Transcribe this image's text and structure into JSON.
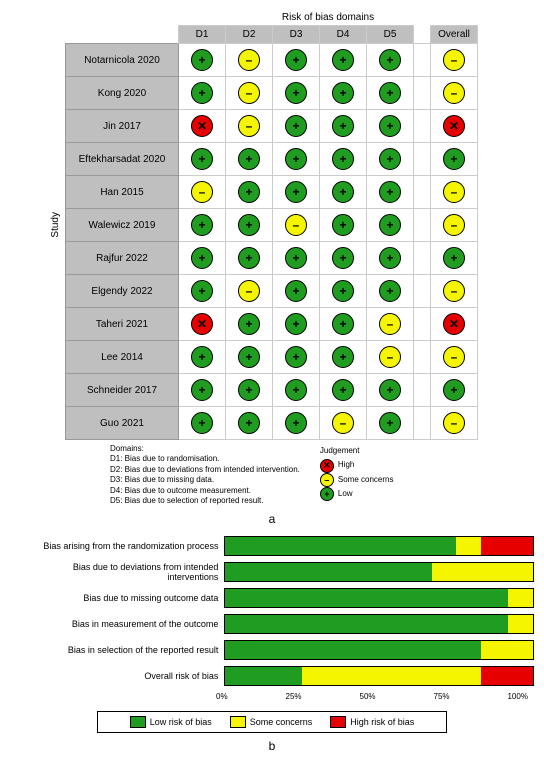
{
  "panelA": {
    "title": "Risk of bias domains",
    "ylabel": "Study",
    "columns": [
      "D1",
      "D2",
      "D3",
      "D4",
      "D5",
      "Overall"
    ],
    "studies": [
      {
        "name": "Notarnicola 2020",
        "cells": [
          "low",
          "some",
          "low",
          "low",
          "low",
          "some"
        ]
      },
      {
        "name": "Kong 2020",
        "cells": [
          "low",
          "some",
          "low",
          "low",
          "low",
          "some"
        ]
      },
      {
        "name": "Jin 2017",
        "cells": [
          "high",
          "some",
          "low",
          "low",
          "low",
          "high"
        ]
      },
      {
        "name": "Eftekharsadat 2020",
        "cells": [
          "low",
          "low",
          "low",
          "low",
          "low",
          "low"
        ]
      },
      {
        "name": "Han 2015",
        "cells": [
          "some",
          "low",
          "low",
          "low",
          "low",
          "some"
        ]
      },
      {
        "name": "Walewicz 2019",
        "cells": [
          "low",
          "low",
          "some",
          "low",
          "low",
          "some"
        ]
      },
      {
        "name": "Rajfur 2022",
        "cells": [
          "low",
          "low",
          "low",
          "low",
          "low",
          "low"
        ]
      },
      {
        "name": "Elgendy 2022",
        "cells": [
          "low",
          "some",
          "low",
          "low",
          "low",
          "some"
        ]
      },
      {
        "name": "Taheri 2021",
        "cells": [
          "high",
          "low",
          "low",
          "low",
          "some",
          "high"
        ]
      },
      {
        "name": "Lee 2014",
        "cells": [
          "low",
          "low",
          "low",
          "low",
          "some",
          "some"
        ]
      },
      {
        "name": "Schneider 2017",
        "cells": [
          "low",
          "low",
          "low",
          "low",
          "low",
          "low"
        ]
      },
      {
        "name": "Guo 2021",
        "cells": [
          "low",
          "low",
          "low",
          "some",
          "low",
          "some"
        ]
      }
    ],
    "domains_text": {
      "heading": "Domains:",
      "d1": "D1: Bias due to randomisation.",
      "d2": "D2: Bias due to deviations from intended intervention.",
      "d3": "D3: Bias due to missing data.",
      "d4": "D4: Bias due to outcome measurement.",
      "d5": "D5: Bias due to selection of reported result."
    },
    "judgement": {
      "heading": "Judgement",
      "high": "High",
      "some": "Some concerns",
      "low": "Low"
    },
    "label": "a"
  },
  "colors": {
    "low": "#209c20",
    "some": "#f5f500",
    "high": "#e60000",
    "border": "#000000",
    "header_bg": "#bfbfbf"
  },
  "symbols": {
    "low": "+",
    "some": "–",
    "high": "✕"
  },
  "panelB": {
    "rows": [
      {
        "label": "Bias arising from the randomization process",
        "low": 75,
        "some": 8,
        "high": 17
      },
      {
        "label": "Bias due to deviations from intended interventions",
        "low": 67,
        "some": 33,
        "high": 0
      },
      {
        "label": "Bias due to missing outcome data",
        "low": 92,
        "some": 8,
        "high": 0
      },
      {
        "label": "Bias in measurement of the outcome",
        "low": 92,
        "some": 8,
        "high": 0
      },
      {
        "label": "Bias in selection of the reported result",
        "low": 83,
        "some": 17,
        "high": 0
      },
      {
        "label": "Overall risk of bias",
        "low": 25,
        "some": 58,
        "high": 17
      }
    ],
    "ticks": [
      "0%",
      "25%",
      "50%",
      "75%",
      "100%"
    ],
    "legend": {
      "low": "Low risk of bias",
      "some": "Some concerns",
      "high": "High risk of bias"
    },
    "label": "b"
  }
}
